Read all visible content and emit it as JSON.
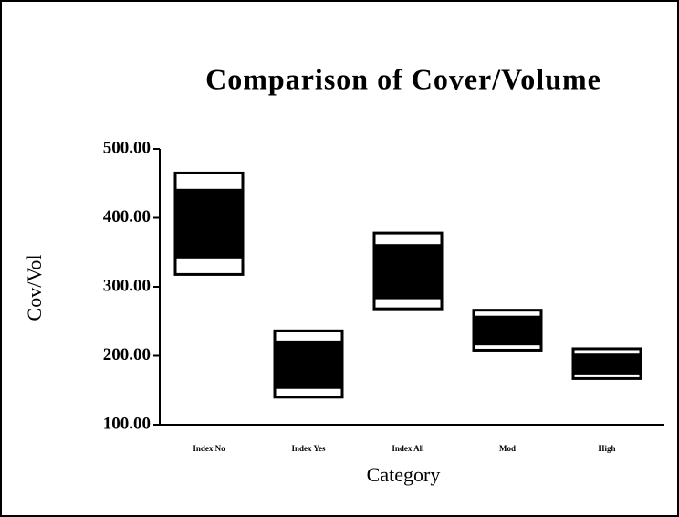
{
  "chart_data": {
    "type": "box",
    "title": "Comparison of Cover/Volume",
    "x_label": "Category",
    "y_label": "Cov/Vol",
    "categories": [
      "Index No",
      "Index Yes",
      "Index All",
      "Mod",
      "High"
    ],
    "low": [
      318,
      140,
      268,
      208,
      167
    ],
    "q1": [
      340,
      152,
      282,
      215,
      173
    ],
    "q3": [
      442,
      222,
      362,
      258,
      203
    ],
    "high": [
      465,
      236,
      378,
      266,
      210
    ],
    "color": "#000000",
    "ylim": [
      100,
      500
    ],
    "yticks": [
      {
        "value": 100,
        "label": "100.00"
      },
      {
        "value": 200,
        "label": "200.00"
      },
      {
        "value": 300,
        "label": "300.00"
      },
      {
        "value": 400,
        "label": "400.00"
      },
      {
        "value": 500,
        "label": "500.00"
      }
    ],
    "grid": false
  }
}
